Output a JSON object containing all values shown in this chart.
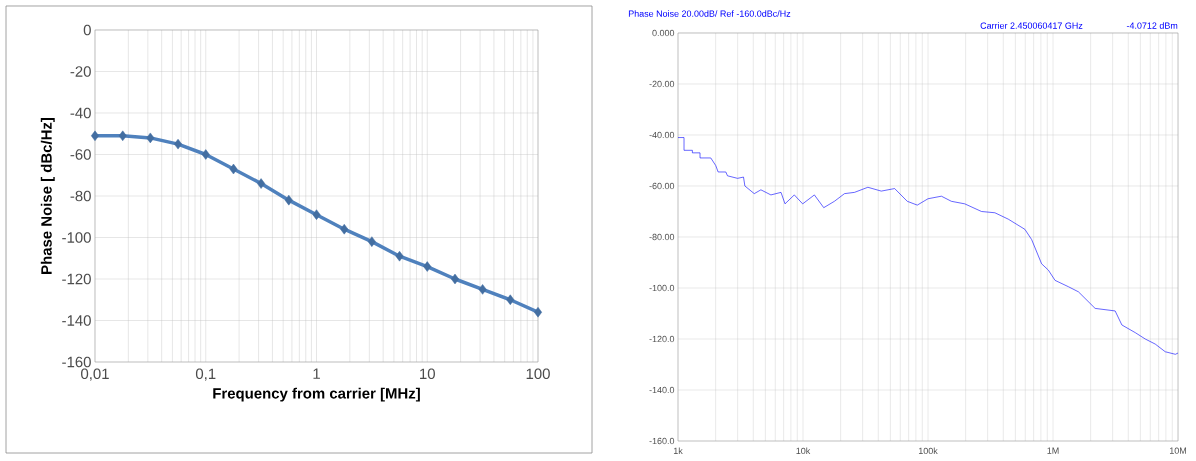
{
  "chart_data": [
    {
      "type": "line",
      "xlabel": "Frequency from carrier [MHz]",
      "ylabel": "Phase Noise  [ dBc/Hz]",
      "log": "x",
      "grid": true,
      "marker": "diamond",
      "xlim": [
        0.01,
        100
      ],
      "xticks": [
        {
          "value": 0.01,
          "label": "0,01"
        },
        {
          "value": 0.1,
          "label": "0,1"
        },
        1,
        10,
        100
      ],
      "ylim": [
        -160,
        0
      ],
      "yticks": [
        -160,
        -140,
        -120,
        -100,
        -80,
        -60,
        -40,
        -20,
        0
      ],
      "series": [
        {
          "color": "#4f81bd",
          "x": [
            0.01,
            0.0178,
            0.0316,
            0.0562,
            0.1,
            0.178,
            0.316,
            0.562,
            1,
            1.78,
            3.16,
            5.62,
            10,
            17.8,
            31.6,
            56.2,
            100
          ],
          "values": [
            -51,
            -51,
            -52,
            -55,
            -60,
            -67,
            -74,
            -82,
            -89,
            -96,
            -102,
            -109,
            -114,
            -120,
            -125,
            -130,
            -136
          ]
        }
      ]
    },
    {
      "type": "line",
      "title": "Phase Noise 20.00dB/ Ref -160.0dBc/Hz",
      "annotations": [
        "Carrier 2.450060417 GHz",
        "-4.0712 dBm"
      ],
      "log": "x",
      "grid": true,
      "xlim": [
        1000,
        10000000
      ],
      "xticks": [
        {
          "value": 1000,
          "label": "1k"
        },
        {
          "value": 10000,
          "label": "10k"
        },
        {
          "value": 100000,
          "label": "100k"
        },
        {
          "value": 1000000,
          "label": "1M"
        },
        {
          "value": 10000000,
          "label": "10M"
        }
      ],
      "ylim": [
        -160,
        0
      ],
      "yticks": [
        {
          "value": -160,
          "label": "-160.0"
        },
        {
          "value": -140,
          "label": "-140.0"
        },
        {
          "value": -120,
          "label": "-120.0"
        },
        {
          "value": -100,
          "label": "-100.0"
        },
        {
          "value": -80,
          "label": "-80.00"
        },
        {
          "value": -60,
          "label": "-60.00"
        },
        {
          "value": -40,
          "label": "-40.00"
        },
        {
          "value": -20,
          "label": "-20.00"
        },
        {
          "value": 0,
          "label": "0.000"
        }
      ],
      "series": [
        {
          "color": "#0000ff",
          "x": [
            1000,
            1117,
            1117,
            1303,
            1303,
            1500,
            1500,
            1828,
            2005,
            2094,
            2412,
            2489,
            2993,
            3342,
            3427,
            4073,
            4603,
            5536,
            6668,
            7178,
            8517,
            9936,
            12330,
            14650,
            17830,
            21470,
            25820,
            33030,
            42270,
            54080,
            68240,
            82070,
            100000,
            128000,
            153800,
            196800,
            267900,
            342800,
            438500,
            595700,
            674500,
            810500,
            918200,
            1038000,
            1328000,
            1597000,
            2172000,
            3141000,
            3556000,
            4549000,
            5470000,
            6577000,
            7907000,
            9526000,
            10000000
          ],
          "values": [
            -41,
            -41,
            -46,
            -46,
            -47,
            -47,
            -49,
            -49,
            -52,
            -54.5,
            -54.5,
            -56,
            -57,
            -56.5,
            -60,
            -63,
            -61.5,
            -63.5,
            -62.5,
            -67,
            -63.5,
            -67,
            -63.5,
            -68.5,
            -66,
            -63,
            -62.5,
            -60.5,
            -62,
            -61,
            -66,
            -67.5,
            -65,
            -64,
            -66,
            -67,
            -70,
            -70.5,
            -73,
            -77,
            -81,
            -90.5,
            -93,
            -97,
            -99.5,
            -101.5,
            -108,
            -109,
            -114.5,
            -117.5,
            -120,
            -122,
            -125,
            -126,
            -125.5
          ]
        }
      ]
    }
  ]
}
